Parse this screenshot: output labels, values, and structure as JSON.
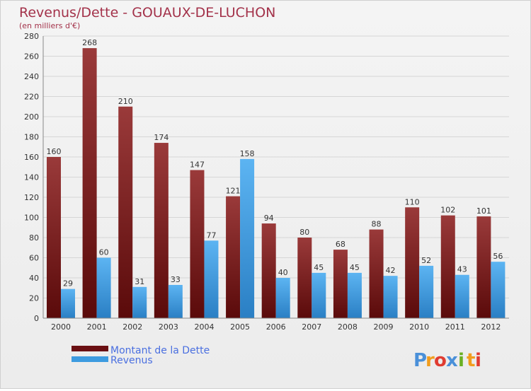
{
  "chart_data": {
    "type": "bar",
    "title": "Revenus/Dette - GOUAUX-DE-LUCHON",
    "subtitle": "(en milliers d'€)",
    "categories": [
      "2000",
      "2001",
      "2002",
      "2003",
      "2004",
      "2005",
      "2006",
      "2007",
      "2008",
      "2009",
      "2010",
      "2011",
      "2012"
    ],
    "series": [
      {
        "name": "Montant de la Dette",
        "color": "#7a1518",
        "values": [
          160,
          268,
          210,
          174,
          147,
          121,
          94,
          80,
          68,
          88,
          110,
          102,
          101
        ]
      },
      {
        "name": "Revenus",
        "color": "#3d9be0",
        "values": [
          29,
          60,
          31,
          33,
          77,
          158,
          40,
          45,
          45,
          42,
          52,
          43,
          56
        ]
      }
    ],
    "yticks": [
      0,
      20,
      40,
      60,
      80,
      100,
      120,
      140,
      160,
      180,
      200,
      220,
      240,
      260,
      280
    ],
    "ylim": [
      0,
      280
    ],
    "grid": true,
    "legend_position": "bottom-left"
  },
  "brand": {
    "letters": [
      "P",
      "r",
      "o",
      "x",
      "i",
      "t",
      "i"
    ],
    "colors": [
      "#4a90d9",
      "#f29d1d",
      "#e03c31",
      "#4a90d9",
      "#6ab023",
      "#f29d1d",
      "#e03c31"
    ]
  }
}
